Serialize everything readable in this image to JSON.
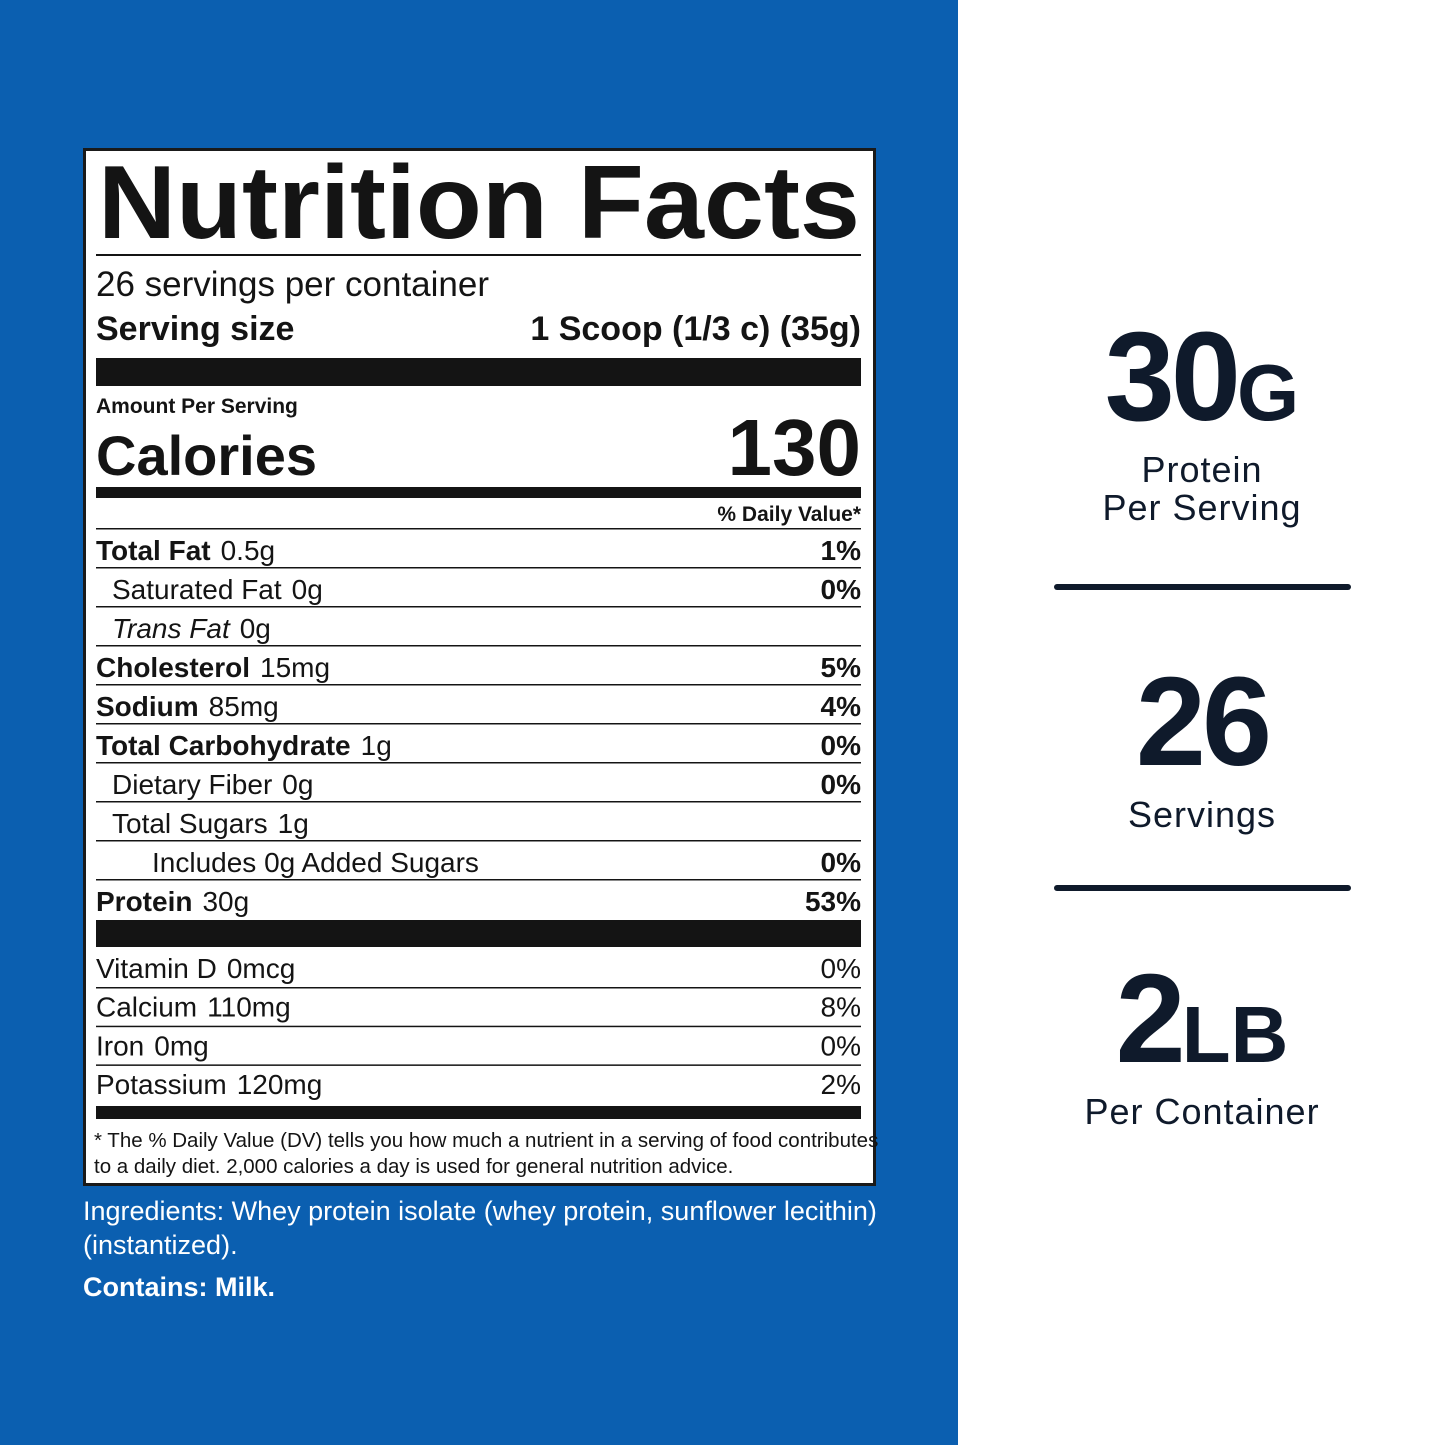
{
  "label": {
    "title": "Nutrition Facts",
    "servings": "26 servings per container",
    "serving_size_label": "Serving size",
    "serving_size": "1 Scoop (1/3 c) (35g)",
    "amount_per_serving": "Amount Per Serving",
    "calories_label": "Calories",
    "calories": 130,
    "dv_header": "% Daily Value*",
    "nutrients": [
      {
        "name": "Total Fat",
        "amount": "0.5g",
        "dv": "1%",
        "bold": true,
        "indent": 0
      },
      {
        "name": "Saturated Fat",
        "amount": "0g",
        "dv": "0%",
        "bold": false,
        "indent": 1
      },
      {
        "name": "Trans Fat",
        "amount": "0g",
        "bold": false,
        "italic": true,
        "indent": 1
      },
      {
        "name": "Cholesterol",
        "amount": "15mg",
        "dv": "5%",
        "bold": true,
        "indent": 0
      },
      {
        "name": "Sodium",
        "amount": "85mg",
        "dv": "4%",
        "bold": true,
        "indent": 0
      },
      {
        "name": "Total Carbohydrate",
        "amount": "1g",
        "dv": "0%",
        "bold": true,
        "indent": 0
      },
      {
        "name": "Dietary Fiber",
        "amount": "0g",
        "dv": "0%",
        "bold": false,
        "indent": 1
      },
      {
        "name": "Total Sugars",
        "amount": "1g",
        "bold": false,
        "indent": 1
      },
      {
        "name": "Includes 0g Added Sugars",
        "dv": "0%",
        "bold": false,
        "indent": 2
      },
      {
        "name": "Protein",
        "amount": "30g",
        "dv": "53%",
        "bold": true,
        "indent": 0
      }
    ],
    "vitamins": [
      {
        "name": "Vitamin D",
        "amount": "0mcg",
        "dv": "0%"
      },
      {
        "name": "Calcium",
        "amount": "110mg",
        "dv": "8%"
      },
      {
        "name": "Iron",
        "amount": "0mg",
        "dv": "0%"
      },
      {
        "name": "Potassium",
        "amount": "120mg",
        "dv": "2%"
      }
    ],
    "footnote": [
      "* The % Daily Value (DV) tells you how much a nutrient in a serving of food contributes",
      "to a daily diet. 2,000 calories a day is used for general nutrition advice."
    ]
  },
  "ingredients": [
    "Ingredients: Whey protein isolate (whey protein, sunflower lecithin)",
    "(instantized)."
  ],
  "contains": "Contains: Milk.",
  "highlights": [
    {
      "value": "30",
      "unit": "G",
      "label": [
        "Protein",
        "Per Serving"
      ]
    },
    {
      "value": "26",
      "label": [
        "Servings"
      ]
    },
    {
      "value": "2",
      "unit": "LB",
      "label": [
        "Per Container"
      ]
    }
  ]
}
